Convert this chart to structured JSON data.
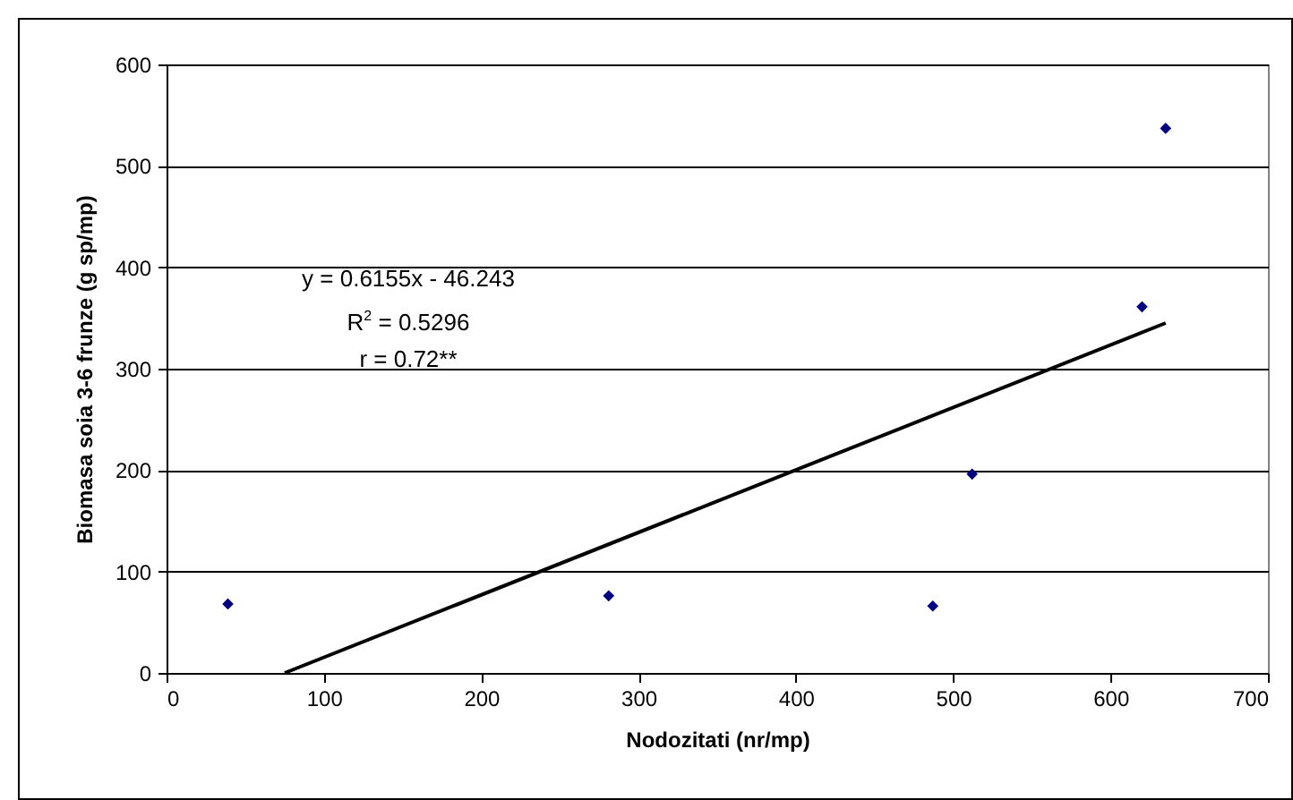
{
  "chart_data": {
    "type": "scatter",
    "xlabel": "Nodozitati (nr/mp)",
    "ylabel": "Biomasa soia 3-6 frunze (g sp/mp)",
    "annotations": [
      "y = 0.6155x - 46.243",
      "R$^{2}$ = 0.5296",
      "r = 0.72**"
    ],
    "xlim": [
      0,
      700
    ],
    "xticks": [
      0,
      100,
      200,
      300,
      400,
      500,
      600,
      700
    ],
    "ylim": [
      0,
      600
    ],
    "yticks": [
      0,
      100,
      200,
      300,
      400,
      500,
      600
    ],
    "grid": "y",
    "marker": "diamond",
    "series": [
      {
        "color": "#000080",
        "x": [
          39,
          281,
          487,
          512,
          620,
          635
        ],
        "values": [
          68,
          76,
          66,
          196,
          361,
          537
        ]
      },
      {
        "type": "line",
        "color": "#000000",
        "x": [
          75.13,
          635
        ],
        "values": [
          0,
          345
        ],
        "marker": "none"
      }
    ]
  }
}
